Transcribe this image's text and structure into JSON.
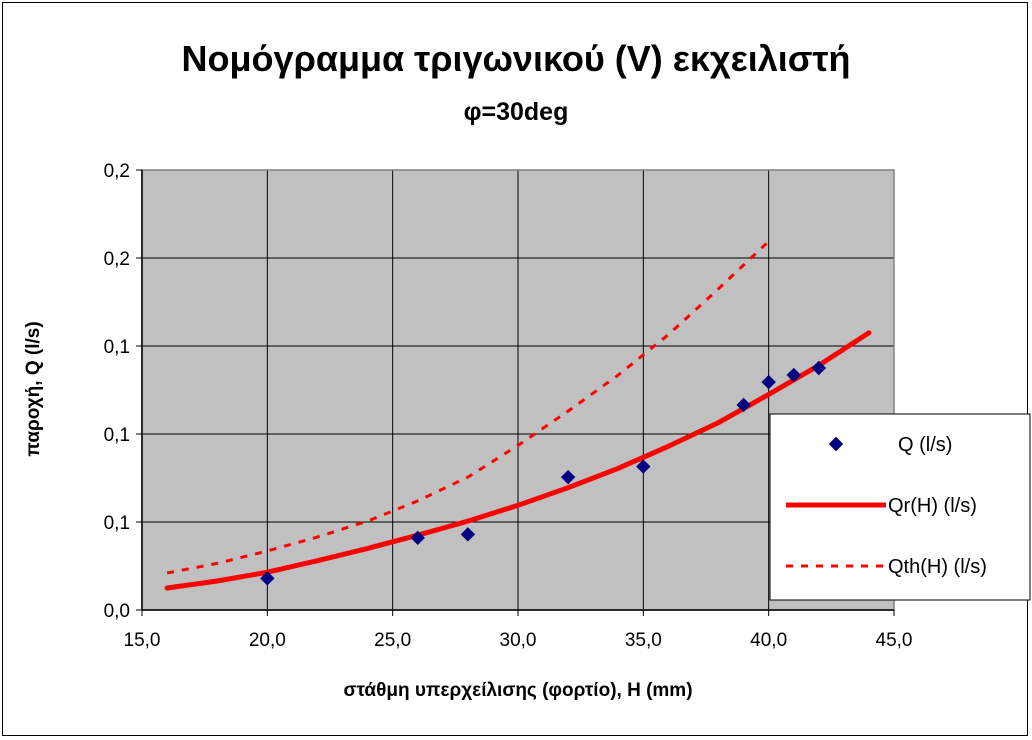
{
  "chart_data": {
    "type": "scatter",
    "title": "Νομόγραμμα τριγωνικού (V) εκχειλιστή",
    "subtitle": "φ=30deg",
    "xlabel": "στάθμη υπερχείλισης (φορτίο), H (mm)",
    "ylabel": "παροχή, Q (l/s)",
    "xlim": [
      15,
      45
    ],
    "ylim": [
      0,
      0.25
    ],
    "x_ticks": [
      15,
      20,
      25,
      30,
      35,
      40,
      45
    ],
    "x_tick_labels": [
      "15,0",
      "20,0",
      "25,0",
      "30,0",
      "35,0",
      "40,0",
      "45,0"
    ],
    "y_ticks": [
      0,
      0.05,
      0.1,
      0.15,
      0.2,
      0.25
    ],
    "y_tick_labels": [
      "0,0",
      "0,1",
      "0,1",
      "0,1",
      "0,2",
      "0,2"
    ],
    "grid": true,
    "plot_background": "#c0c0c0",
    "legend_position": "right",
    "series": [
      {
        "name": "Q (l/s)",
        "kind": "markers",
        "marker": "diamond",
        "color": "#000080",
        "x": [
          20,
          26,
          28,
          32,
          35,
          39,
          40,
          41,
          42
        ],
        "y": [
          0.018,
          0.041,
          0.043,
          0.0755,
          0.0815,
          0.1165,
          0.1295,
          0.1335,
          0.1375
        ]
      },
      {
        "name": "Qr(H) (l/s)",
        "kind": "line",
        "style": "solid",
        "color": "#ff0000",
        "x": [
          16,
          18,
          20,
          22,
          24,
          26,
          28,
          30,
          32,
          34,
          36,
          38,
          40,
          42,
          44
        ],
        "y": [
          0.0125,
          0.0165,
          0.0215,
          0.028,
          0.035,
          0.0425,
          0.0505,
          0.0595,
          0.0695,
          0.0805,
          0.093,
          0.1065,
          0.1225,
          0.139,
          0.1575
        ]
      },
      {
        "name": "Qth(H) (l/s)",
        "kind": "line",
        "style": "dashed",
        "color": "#ff0000",
        "x": [
          16,
          18,
          20,
          22,
          24,
          26,
          28,
          30,
          32,
          34,
          36,
          38,
          40
        ],
        "y": [
          0.021,
          0.0265,
          0.0335,
          0.0415,
          0.0505,
          0.062,
          0.0755,
          0.0935,
          0.113,
          0.1335,
          0.1565,
          0.1825,
          0.2095
        ]
      }
    ]
  }
}
